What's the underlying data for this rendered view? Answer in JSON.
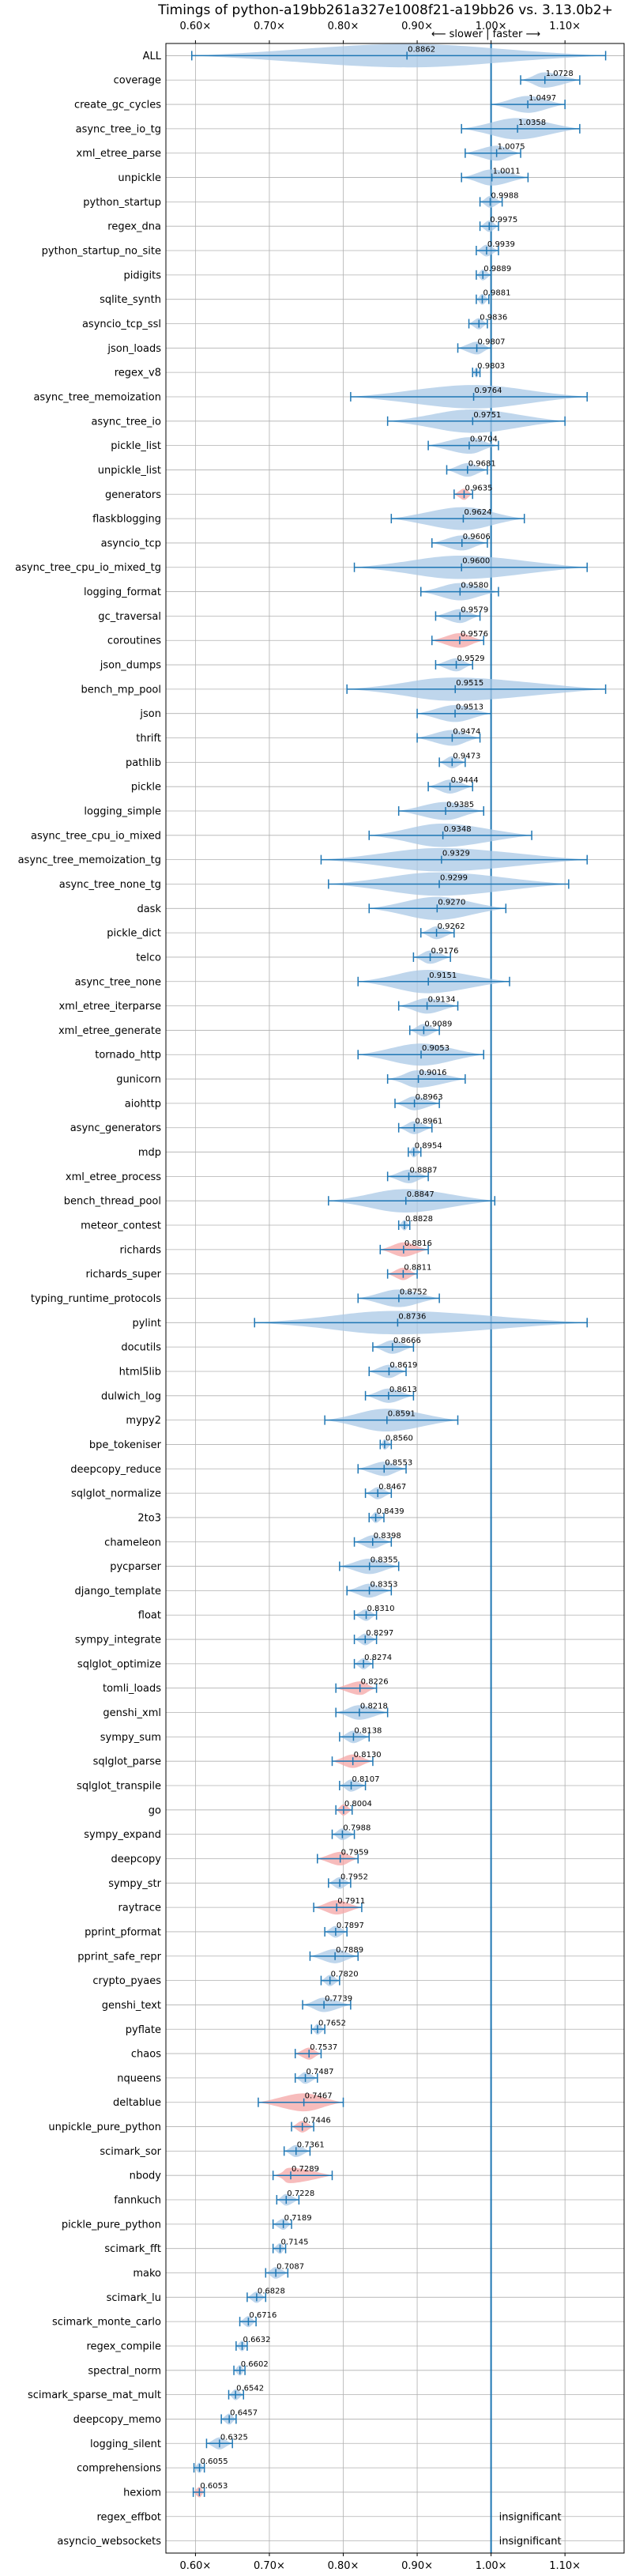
{
  "chart_data": {
    "type": "violin",
    "title": "Timings of python-a19bb261a327e1008f21-a19bb26 vs. 3.13.0b2+",
    "subtitle": "⟵ slower | faster ⟶",
    "xlim": [
      0.56,
      1.18
    ],
    "x_ticks": [
      0.6,
      0.7,
      0.8,
      0.9,
      1.0,
      1.1
    ],
    "x_tick_labels": [
      "0.60×",
      "0.70×",
      "0.80×",
      "0.90×",
      "1.00×",
      "1.10×"
    ],
    "reference_line": 1.0,
    "grid": true,
    "colors": {
      "normal": "#1f77b4",
      "normal_fill": "#aac8e6",
      "slow_fill": "#f4a6a6",
      "slow_edge": "#d62728"
    },
    "insignificant_label": "insignificant",
    "benchmarks": [
      {
        "name": "ALL",
        "value": 0.8862,
        "value_label": "0.8862",
        "low": 0.595,
        "high": 1.155,
        "highlight": false
      },
      {
        "name": "coverage",
        "value": 1.0728,
        "value_label": "1.0728",
        "low": 1.04,
        "high": 1.12,
        "highlight": false
      },
      {
        "name": "create_gc_cycles",
        "value": 1.0497,
        "value_label": "1.0497",
        "low": 1.0,
        "high": 1.1,
        "highlight": false
      },
      {
        "name": "async_tree_io_tg",
        "value": 1.0358,
        "value_label": "1.0358",
        "low": 0.96,
        "high": 1.12,
        "highlight": false
      },
      {
        "name": "xml_etree_parse",
        "value": 1.0075,
        "value_label": "1.0075",
        "low": 0.965,
        "high": 1.04,
        "highlight": false
      },
      {
        "name": "unpickle",
        "value": 1.0011,
        "value_label": "1.0011",
        "low": 0.96,
        "high": 1.05,
        "highlight": false
      },
      {
        "name": "python_startup",
        "value": 0.9988,
        "value_label": "0.9988",
        "low": 0.985,
        "high": 1.015,
        "highlight": false
      },
      {
        "name": "regex_dna",
        "value": 0.9975,
        "value_label": "0.9975",
        "low": 0.985,
        "high": 1.01,
        "highlight": false
      },
      {
        "name": "python_startup_no_site",
        "value": 0.9939,
        "value_label": "0.9939",
        "low": 0.98,
        "high": 1.01,
        "highlight": false
      },
      {
        "name": "pidigits",
        "value": 0.9889,
        "value_label": "0.9889",
        "low": 0.98,
        "high": 1.0,
        "highlight": false
      },
      {
        "name": "sqlite_synth",
        "value": 0.9881,
        "value_label": "0.9881",
        "low": 0.98,
        "high": 0.997,
        "highlight": false
      },
      {
        "name": "asyncio_tcp_ssl",
        "value": 0.9836,
        "value_label": "0.9836",
        "low": 0.97,
        "high": 0.995,
        "highlight": false
      },
      {
        "name": "json_loads",
        "value": 0.9807,
        "value_label": "0.9807",
        "low": 0.955,
        "high": 1.0,
        "highlight": false
      },
      {
        "name": "regex_v8",
        "value": 0.9803,
        "value_label": "0.9803",
        "low": 0.975,
        "high": 0.985,
        "highlight": false
      },
      {
        "name": "async_tree_memoization",
        "value": 0.9764,
        "value_label": "0.9764",
        "low": 0.81,
        "high": 1.13,
        "highlight": false
      },
      {
        "name": "async_tree_io",
        "value": 0.9751,
        "value_label": "0.9751",
        "low": 0.86,
        "high": 1.1,
        "highlight": false
      },
      {
        "name": "pickle_list",
        "value": 0.9704,
        "value_label": "0.9704",
        "low": 0.915,
        "high": 1.01,
        "highlight": false
      },
      {
        "name": "unpickle_list",
        "value": 0.9681,
        "value_label": "0.9681",
        "low": 0.94,
        "high": 0.995,
        "highlight": false
      },
      {
        "name": "generators",
        "value": 0.9635,
        "value_label": "0.9635",
        "low": 0.95,
        "high": 0.975,
        "highlight": true
      },
      {
        "name": "flaskblogging",
        "value": 0.9624,
        "value_label": "0.9624",
        "low": 0.865,
        "high": 1.045,
        "highlight": false
      },
      {
        "name": "asyncio_tcp",
        "value": 0.9606,
        "value_label": "0.9606",
        "low": 0.92,
        "high": 0.995,
        "highlight": false
      },
      {
        "name": "async_tree_cpu_io_mixed_tg",
        "value": 0.96,
        "value_label": "0.9600",
        "low": 0.815,
        "high": 1.13,
        "highlight": false
      },
      {
        "name": "logging_format",
        "value": 0.958,
        "value_label": "0.9580",
        "low": 0.905,
        "high": 1.01,
        "highlight": false
      },
      {
        "name": "gc_traversal",
        "value": 0.9579,
        "value_label": "0.9579",
        "low": 0.925,
        "high": 0.985,
        "highlight": false
      },
      {
        "name": "coroutines",
        "value": 0.9576,
        "value_label": "0.9576",
        "low": 0.92,
        "high": 0.99,
        "highlight": true
      },
      {
        "name": "json_dumps",
        "value": 0.9529,
        "value_label": "0.9529",
        "low": 0.925,
        "high": 0.975,
        "highlight": false
      },
      {
        "name": "bench_mp_pool",
        "value": 0.9515,
        "value_label": "0.9515",
        "low": 0.805,
        "high": 1.155,
        "highlight": false
      },
      {
        "name": "json",
        "value": 0.9513,
        "value_label": "0.9513",
        "low": 0.9,
        "high": 1.0,
        "highlight": false
      },
      {
        "name": "thrift",
        "value": 0.9474,
        "value_label": "0.9474",
        "low": 0.9,
        "high": 0.985,
        "highlight": false
      },
      {
        "name": "pathlib",
        "value": 0.9473,
        "value_label": "0.9473",
        "low": 0.93,
        "high": 0.965,
        "highlight": false
      },
      {
        "name": "pickle",
        "value": 0.9444,
        "value_label": "0.9444",
        "low": 0.915,
        "high": 0.975,
        "highlight": false
      },
      {
        "name": "logging_simple",
        "value": 0.9385,
        "value_label": "0.9385",
        "low": 0.875,
        "high": 0.99,
        "highlight": false
      },
      {
        "name": "async_tree_cpu_io_mixed",
        "value": 0.9348,
        "value_label": "0.9348",
        "low": 0.835,
        "high": 1.055,
        "highlight": false
      },
      {
        "name": "async_tree_memoization_tg",
        "value": 0.9329,
        "value_label": "0.9329",
        "low": 0.77,
        "high": 1.13,
        "highlight": false
      },
      {
        "name": "async_tree_none_tg",
        "value": 0.9299,
        "value_label": "0.9299",
        "low": 0.78,
        "high": 1.105,
        "highlight": false
      },
      {
        "name": "dask",
        "value": 0.927,
        "value_label": "0.9270",
        "low": 0.835,
        "high": 1.02,
        "highlight": false
      },
      {
        "name": "pickle_dict",
        "value": 0.9262,
        "value_label": "0.9262",
        "low": 0.905,
        "high": 0.95,
        "highlight": false
      },
      {
        "name": "telco",
        "value": 0.9176,
        "value_label": "0.9176",
        "low": 0.895,
        "high": 0.945,
        "highlight": false
      },
      {
        "name": "async_tree_none",
        "value": 0.9151,
        "value_label": "0.9151",
        "low": 0.82,
        "high": 1.025,
        "highlight": false
      },
      {
        "name": "xml_etree_iterparse",
        "value": 0.9134,
        "value_label": "0.9134",
        "low": 0.875,
        "high": 0.955,
        "highlight": false
      },
      {
        "name": "xml_etree_generate",
        "value": 0.9089,
        "value_label": "0.9089",
        "low": 0.89,
        "high": 0.93,
        "highlight": false
      },
      {
        "name": "tornado_http",
        "value": 0.9053,
        "value_label": "0.9053",
        "low": 0.82,
        "high": 0.99,
        "highlight": false
      },
      {
        "name": "gunicorn",
        "value": 0.9016,
        "value_label": "0.9016",
        "low": 0.86,
        "high": 0.965,
        "highlight": false
      },
      {
        "name": "aiohttp",
        "value": 0.8963,
        "value_label": "0.8963",
        "low": 0.87,
        "high": 0.93,
        "highlight": false
      },
      {
        "name": "async_generators",
        "value": 0.8961,
        "value_label": "0.8961",
        "low": 0.875,
        "high": 0.92,
        "highlight": false
      },
      {
        "name": "mdp",
        "value": 0.8954,
        "value_label": "0.8954",
        "low": 0.888,
        "high": 0.905,
        "highlight": false
      },
      {
        "name": "xml_etree_process",
        "value": 0.8887,
        "value_label": "0.8887",
        "low": 0.86,
        "high": 0.915,
        "highlight": false
      },
      {
        "name": "bench_thread_pool",
        "value": 0.8847,
        "value_label": "0.8847",
        "low": 0.78,
        "high": 1.005,
        "highlight": false
      },
      {
        "name": "meteor_contest",
        "value": 0.8828,
        "value_label": "0.8828",
        "low": 0.875,
        "high": 0.89,
        "highlight": false
      },
      {
        "name": "richards",
        "value": 0.8816,
        "value_label": "0.8816",
        "low": 0.85,
        "high": 0.915,
        "highlight": true
      },
      {
        "name": "richards_super",
        "value": 0.8811,
        "value_label": "0.8811",
        "low": 0.86,
        "high": 0.9,
        "highlight": true
      },
      {
        "name": "typing_runtime_protocols",
        "value": 0.8752,
        "value_label": "0.8752",
        "low": 0.82,
        "high": 0.93,
        "highlight": false
      },
      {
        "name": "pylint",
        "value": 0.8736,
        "value_label": "0.8736",
        "low": 0.68,
        "high": 1.13,
        "highlight": false
      },
      {
        "name": "docutils",
        "value": 0.8666,
        "value_label": "0.8666",
        "low": 0.84,
        "high": 0.895,
        "highlight": false
      },
      {
        "name": "html5lib",
        "value": 0.8619,
        "value_label": "0.8619",
        "low": 0.835,
        "high": 0.885,
        "highlight": false
      },
      {
        "name": "dulwich_log",
        "value": 0.8613,
        "value_label": "0.8613",
        "low": 0.83,
        "high": 0.895,
        "highlight": false
      },
      {
        "name": "mypy2",
        "value": 0.8591,
        "value_label": "0.8591",
        "low": 0.775,
        "high": 0.955,
        "highlight": false
      },
      {
        "name": "bpe_tokeniser",
        "value": 0.856,
        "value_label": "0.8560",
        "low": 0.85,
        "high": 0.865,
        "highlight": false
      },
      {
        "name": "deepcopy_reduce",
        "value": 0.8553,
        "value_label": "0.8553",
        "low": 0.82,
        "high": 0.885,
        "highlight": false
      },
      {
        "name": "sqlglot_normalize",
        "value": 0.8467,
        "value_label": "0.8467",
        "low": 0.83,
        "high": 0.865,
        "highlight": false
      },
      {
        "name": "2to3",
        "value": 0.8439,
        "value_label": "0.8439",
        "low": 0.835,
        "high": 0.855,
        "highlight": false
      },
      {
        "name": "chameleon",
        "value": 0.8398,
        "value_label": "0.8398",
        "low": 0.815,
        "high": 0.865,
        "highlight": false
      },
      {
        "name": "pycparser",
        "value": 0.8355,
        "value_label": "0.8355",
        "low": 0.795,
        "high": 0.875,
        "highlight": false
      },
      {
        "name": "django_template",
        "value": 0.8353,
        "value_label": "0.8353",
        "low": 0.805,
        "high": 0.865,
        "highlight": false
      },
      {
        "name": "float",
        "value": 0.831,
        "value_label": "0.8310",
        "low": 0.815,
        "high": 0.845,
        "highlight": false
      },
      {
        "name": "sympy_integrate",
        "value": 0.8297,
        "value_label": "0.8297",
        "low": 0.815,
        "high": 0.845,
        "highlight": false
      },
      {
        "name": "sqlglot_optimize",
        "value": 0.8274,
        "value_label": "0.8274",
        "low": 0.815,
        "high": 0.84,
        "highlight": false
      },
      {
        "name": "tomli_loads",
        "value": 0.8226,
        "value_label": "0.8226",
        "low": 0.79,
        "high": 0.845,
        "highlight": true
      },
      {
        "name": "genshi_xml",
        "value": 0.8218,
        "value_label": "0.8218",
        "low": 0.79,
        "high": 0.86,
        "highlight": false
      },
      {
        "name": "sympy_sum",
        "value": 0.8138,
        "value_label": "0.8138",
        "low": 0.795,
        "high": 0.835,
        "highlight": false
      },
      {
        "name": "sqlglot_parse",
        "value": 0.813,
        "value_label": "0.8130",
        "low": 0.785,
        "high": 0.84,
        "highlight": true
      },
      {
        "name": "sqlglot_transpile",
        "value": 0.8107,
        "value_label": "0.8107",
        "low": 0.795,
        "high": 0.83,
        "highlight": false
      },
      {
        "name": "go",
        "value": 0.8004,
        "value_label": "0.8004",
        "low": 0.79,
        "high": 0.812,
        "highlight": true
      },
      {
        "name": "sympy_expand",
        "value": 0.7988,
        "value_label": "0.7988",
        "low": 0.785,
        "high": 0.815,
        "highlight": false
      },
      {
        "name": "deepcopy",
        "value": 0.7959,
        "value_label": "0.7959",
        "low": 0.765,
        "high": 0.82,
        "highlight": true
      },
      {
        "name": "sympy_str",
        "value": 0.7952,
        "value_label": "0.7952",
        "low": 0.78,
        "high": 0.81,
        "highlight": false
      },
      {
        "name": "raytrace",
        "value": 0.7911,
        "value_label": "0.7911",
        "low": 0.76,
        "high": 0.825,
        "highlight": true
      },
      {
        "name": "pprint_pformat",
        "value": 0.7897,
        "value_label": "0.7897",
        "low": 0.775,
        "high": 0.805,
        "highlight": false
      },
      {
        "name": "pprint_safe_repr",
        "value": 0.7889,
        "value_label": "0.7889",
        "low": 0.755,
        "high": 0.82,
        "highlight": false
      },
      {
        "name": "crypto_pyaes",
        "value": 0.782,
        "value_label": "0.7820",
        "low": 0.77,
        "high": 0.795,
        "highlight": false
      },
      {
        "name": "genshi_text",
        "value": 0.7739,
        "value_label": "0.7739",
        "low": 0.745,
        "high": 0.81,
        "highlight": false
      },
      {
        "name": "pyflate",
        "value": 0.7652,
        "value_label": "0.7652",
        "low": 0.757,
        "high": 0.775,
        "highlight": false
      },
      {
        "name": "chaos",
        "value": 0.7537,
        "value_label": "0.7537",
        "low": 0.735,
        "high": 0.77,
        "highlight": true
      },
      {
        "name": "nqueens",
        "value": 0.7487,
        "value_label": "0.7487",
        "low": 0.735,
        "high": 0.765,
        "highlight": false
      },
      {
        "name": "deltablue",
        "value": 0.7467,
        "value_label": "0.7467",
        "low": 0.685,
        "high": 0.8,
        "highlight": true
      },
      {
        "name": "unpickle_pure_python",
        "value": 0.7446,
        "value_label": "0.7446",
        "low": 0.73,
        "high": 0.76,
        "highlight": true
      },
      {
        "name": "scimark_sor",
        "value": 0.7361,
        "value_label": "0.7361",
        "low": 0.72,
        "high": 0.755,
        "highlight": false
      },
      {
        "name": "nbody",
        "value": 0.7289,
        "value_label": "0.7289",
        "low": 0.705,
        "high": 0.785,
        "highlight": true
      },
      {
        "name": "fannkuch",
        "value": 0.7228,
        "value_label": "0.7228",
        "low": 0.71,
        "high": 0.74,
        "highlight": false
      },
      {
        "name": "pickle_pure_python",
        "value": 0.7189,
        "value_label": "0.7189",
        "low": 0.705,
        "high": 0.73,
        "highlight": false
      },
      {
        "name": "scimark_fft",
        "value": 0.7145,
        "value_label": "0.7145",
        "low": 0.705,
        "high": 0.722,
        "highlight": false
      },
      {
        "name": "mako",
        "value": 0.7087,
        "value_label": "0.7087",
        "low": 0.695,
        "high": 0.725,
        "highlight": false
      },
      {
        "name": "scimark_lu",
        "value": 0.6828,
        "value_label": "0.6828",
        "low": 0.67,
        "high": 0.695,
        "highlight": false
      },
      {
        "name": "scimark_monte_carlo",
        "value": 0.6716,
        "value_label": "0.6716",
        "low": 0.66,
        "high": 0.682,
        "highlight": false
      },
      {
        "name": "regex_compile",
        "value": 0.6632,
        "value_label": "0.6632",
        "low": 0.655,
        "high": 0.67,
        "highlight": false
      },
      {
        "name": "spectral_norm",
        "value": 0.6602,
        "value_label": "0.6602",
        "low": 0.652,
        "high": 0.667,
        "highlight": false
      },
      {
        "name": "scimark_sparse_mat_mult",
        "value": 0.6542,
        "value_label": "0.6542",
        "low": 0.645,
        "high": 0.665,
        "highlight": false
      },
      {
        "name": "deepcopy_memo",
        "value": 0.6457,
        "value_label": "0.6457",
        "low": 0.635,
        "high": 0.655,
        "highlight": false
      },
      {
        "name": "logging_silent",
        "value": 0.6325,
        "value_label": "0.6325",
        "low": 0.615,
        "high": 0.65,
        "highlight": false
      },
      {
        "name": "comprehensions",
        "value": 0.6055,
        "value_label": "0.6055",
        "low": 0.598,
        "high": 0.612,
        "highlight": false
      },
      {
        "name": "hexiom",
        "value": 0.6053,
        "value_label": "0.6053",
        "low": 0.597,
        "high": 0.612,
        "highlight": true
      },
      {
        "name": "regex_effbot",
        "value": null,
        "value_label": "",
        "low": null,
        "high": null,
        "highlight": false,
        "insignificant": true
      },
      {
        "name": "asyncio_websockets",
        "value": null,
        "value_label": "",
        "low": null,
        "high": null,
        "highlight": false,
        "insignificant": true
      }
    ]
  }
}
